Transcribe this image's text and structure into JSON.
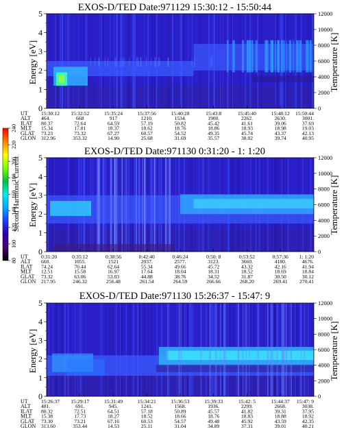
{
  "chart_data": [
    {
      "type": "heatmap",
      "title": "EXOS-D/TED   Date:971129  15:30:12 - 15:50:44",
      "ylabel": "Energy [eV]",
      "y2label": "Temperature [K]",
      "ylim": [
        0,
        5
      ],
      "yticks": [
        "0",
        "1",
        "2",
        "3",
        "4",
        "5"
      ],
      "y2lim": [
        0,
        12000
      ],
      "y2ticks": [
        "0",
        "2000",
        "4000",
        "6000",
        "8000",
        "10000",
        "12000"
      ],
      "ephemeris": [
        {
          "label": "UT",
          "values": [
            "15:30:12",
            "15:32:52",
            "15:35:24",
            "15:37:56",
            "15:40:28",
            "15:43:8",
            "15:45:40",
            "15:48:12",
            "15:50:44"
          ]
        },
        {
          "label": "ALT",
          "values": [
            "464.",
            "668",
            "917",
            "1210.",
            "1534.",
            "1900.",
            "2262.",
            "2630.",
            "3001."
          ]
        },
        {
          "label": "ILAT",
          "values": [
            "80.37",
            "72.64",
            "64.59",
            "57.19",
            "50.82",
            "45.42",
            "41.61",
            "39.06",
            "37.69"
          ]
        },
        {
          "label": "MLT",
          "values": [
            "15.34",
            "17.81",
            "18.37",
            "18.62",
            "18.76",
            "18.86",
            "18.93",
            "18.98",
            "19.03"
          ]
        },
        {
          "label": "GLAT",
          "values": [
            "73.23",
            "73.32",
            "67.27",
            "60.57",
            "54.52",
            "49.35",
            "45.74",
            "43.37",
            "42.13"
          ]
        },
        {
          "label": "GLON",
          "values": [
            "312.96",
            "353.32",
            "14.90",
            "25.68",
            "31.69",
            "35.57",
            "38.02",
            "39.74",
            "40.95"
          ]
        }
      ]
    },
    {
      "type": "heatmap",
      "title": "EXOS-D/TED   Date:971130   0:31:20 - 1: 1:20",
      "ylabel": "Energy [eV]",
      "y2label": "Temperature [K]",
      "ylim": [
        0,
        5
      ],
      "yticks": [
        "0",
        "1",
        "2",
        "3",
        "4",
        "5"
      ],
      "y2lim": [
        0,
        12000
      ],
      "y2ticks": [
        "0",
        "2000",
        "4000",
        "6000",
        "8000",
        "10000",
        "12000"
      ],
      "ephemeris": [
        {
          "label": "UT",
          "values": [
            "0:31:20",
            "0:35:12",
            "0:38:56",
            "0:42:40",
            "0:46:24",
            "0:50: 8",
            "0:53:52",
            "0:57:36",
            "1: 1:20"
          ]
        },
        {
          "label": "ALT",
          "values": [
            "660.",
            "1055.",
            "1521",
            "2037.",
            "2577.",
            "3123.",
            "3660.",
            "4180.",
            "4676."
          ]
        },
        {
          "label": "ILAT",
          "values": [
            "74.24",
            "70.44",
            "62.64",
            "55.34",
            "49.66",
            "45.72",
            "43.32",
            "42.16",
            "41.94"
          ]
        },
        {
          "label": "MLT",
          "values": [
            "12.51",
            "15.58",
            "16.97",
            "17.64",
            "18.04",
            "18.31",
            "18.52",
            "18.69",
            "18.84"
          ]
        },
        {
          "label": "GLAT",
          "values": [
            "73.32",
            "63.06",
            "53.03",
            "44.88",
            "38.76",
            "34.52",
            "31.87",
            "30.50",
            "30.12"
          ]
        },
        {
          "label": "GLON",
          "values": [
            "217.95",
            "246.32",
            "256.48",
            "261.54",
            "264.59",
            "266.66",
            "268.20",
            "269.41",
            "270.41"
          ]
        }
      ]
    },
    {
      "type": "heatmap",
      "title": "EXOS-D/TED   Date:971130  15:26:37 - 15:47: 9",
      "ylabel": "Energy [eV]",
      "y2label": "Temperature [K]",
      "ylim": [
        0,
        5
      ],
      "yticks": [
        "0",
        "1",
        "2",
        "3",
        "4",
        "5"
      ],
      "y2lim": [
        0,
        12000
      ],
      "y2ticks": [
        "0",
        "2000",
        "4000",
        "6000",
        "8000",
        "10000",
        "12000"
      ],
      "ephemeris": [
        {
          "label": "UT",
          "values": [
            "15:26:37",
            "15:29:17",
            "15:31:49",
            "15:34:21",
            "15:36:53",
            "15:39:33",
            "15:42: 5",
            "15:44:37",
            "15:47: 9"
          ]
        },
        {
          "label": "ALT",
          "values": [
            "481.",
            "691.",
            "945.",
            "1241.",
            "1568.",
            "1936.",
            "2299.",
            "2668.",
            "3038."
          ]
        },
        {
          "label": "ILAT",
          "values": [
            "80.32",
            "72.51",
            "64.51",
            "57.18",
            "50.89",
            "45.57",
            "41.82",
            "39.31",
            "37.95"
          ]
        },
        {
          "label": "MLT",
          "values": [
            "15.38",
            "17.73",
            "18.27",
            "18.52",
            "18.66",
            "18.76",
            "18.83",
            "18.88",
            "18.92"
          ]
        },
        {
          "label": "GLAT",
          "values": [
            "73.30",
            "73.21",
            "67.16",
            "60.53",
            "54.57",
            "49.48",
            "45.92",
            "43.59",
            "42.35"
          ]
        },
        {
          "label": "GLON",
          "values": [
            "313.60",
            "353.44",
            "14.53",
            "25.11",
            "31.04",
            "34.89",
            "37.31",
            "39.01",
            "40.21"
          ]
        }
      ]
    }
  ],
  "colorbar": {
    "label": "Second Harmonic Current",
    "ticks": [
      "80",
      "100",
      "120",
      "140",
      "160",
      "180",
      "200",
      "220",
      "240"
    ],
    "range": [
      80,
      240
    ],
    "colors": [
      "#000000",
      "#4a0070",
      "#2a00a8",
      "#1e40ff",
      "#00a8ff",
      "#00f0f0",
      "#00c040",
      "#80ff00",
      "#ffff00",
      "#ff8000",
      "#ff0000"
    ]
  }
}
